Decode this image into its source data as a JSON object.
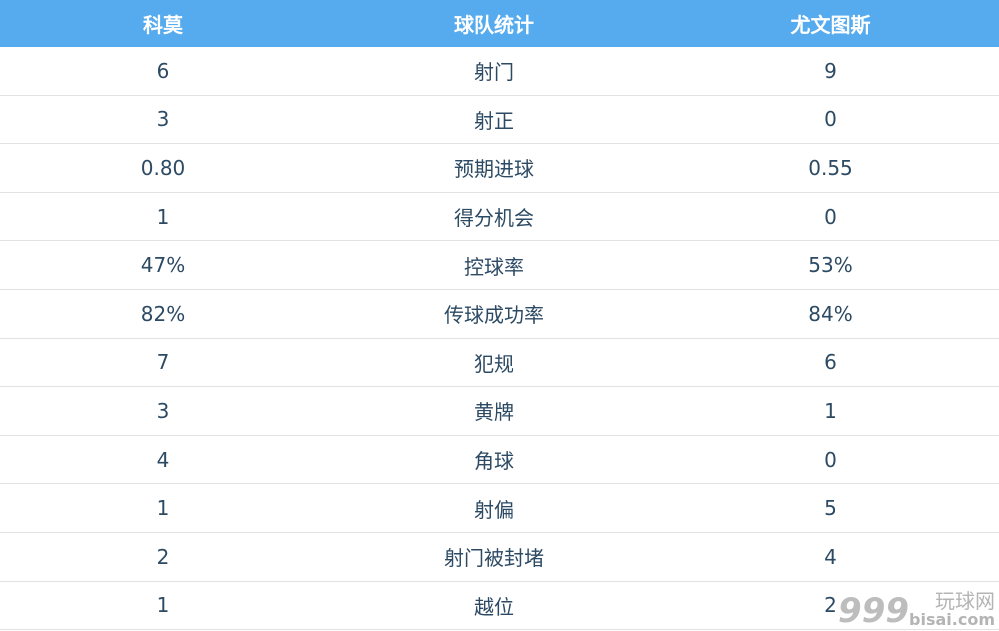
{
  "header": {
    "home": "科莫",
    "stat": "球队统计",
    "away": "尤文图斯"
  },
  "rows": [
    {
      "home": "6",
      "stat": "射门",
      "away": "9"
    },
    {
      "home": "3",
      "stat": "射正",
      "away": "0"
    },
    {
      "home": "0.80",
      "stat": "预期进球",
      "away": "0.55"
    },
    {
      "home": "1",
      "stat": "得分机会",
      "away": "0"
    },
    {
      "home": "47%",
      "stat": "控球率",
      "away": "53%"
    },
    {
      "home": "82%",
      "stat": "传球成功率",
      "away": "84%"
    },
    {
      "home": "7",
      "stat": "犯规",
      "away": "6"
    },
    {
      "home": "3",
      "stat": "黄牌",
      "away": "1"
    },
    {
      "home": "4",
      "stat": "角球",
      "away": "0"
    },
    {
      "home": "1",
      "stat": "射偏",
      "away": "5"
    },
    {
      "home": "2",
      "stat": "射门被封堵",
      "away": "4"
    },
    {
      "home": "1",
      "stat": "越位",
      "away": "2"
    }
  ],
  "watermark": {
    "logo": "999",
    "cn": "玩球网",
    "en": "bisai.com"
  },
  "colors": {
    "header_bg": "#56abef",
    "text": "#2c4a63"
  }
}
